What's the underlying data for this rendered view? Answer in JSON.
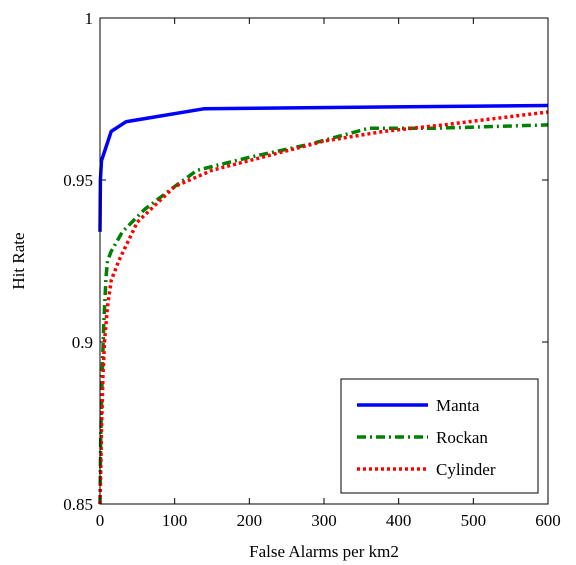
{
  "chart_data": {
    "type": "line",
    "xlabel": "False Alarms per km2",
    "ylabel": "Hit Rate",
    "xlim": [
      0,
      600
    ],
    "ylim": [
      0.85,
      1
    ],
    "xticks": [
      0,
      100,
      200,
      300,
      400,
      500,
      600
    ],
    "xtick_labels": [
      "0",
      "100",
      "200",
      "300",
      "400",
      "500",
      "600"
    ],
    "yticks": [
      0.85,
      0.9,
      0.95,
      1
    ],
    "ytick_labels": [
      "0.85",
      "0.9",
      "0.95",
      "1"
    ],
    "grid": false,
    "legend_position": "bottom-right",
    "series": [
      {
        "name": "Manta",
        "color": "#0000ff",
        "style": "solid",
        "x": [
          0,
          0.5,
          2,
          5,
          15,
          35,
          140,
          600
        ],
        "y": [
          0.934,
          0.95,
          0.956,
          0.958,
          0.965,
          0.968,
          0.972,
          0.973
        ]
      },
      {
        "name": "Rockan",
        "color": "#008000",
        "style": "dashdot",
        "x": [
          0,
          1,
          3,
          5,
          8,
          10,
          15,
          30,
          60,
          100,
          130,
          200,
          280,
          360,
          450,
          600
        ],
        "y": [
          0.85,
          0.87,
          0.89,
          0.905,
          0.92,
          0.925,
          0.928,
          0.934,
          0.941,
          0.948,
          0.953,
          0.957,
          0.961,
          0.966,
          0.966,
          0.967
        ]
      },
      {
        "name": "Cylinder",
        "color": "#ff0000",
        "style": "dotted",
        "x": [
          0,
          1,
          2,
          4,
          6,
          10,
          15,
          25,
          50,
          100,
          150,
          200,
          300,
          380,
          460,
          530,
          600
        ],
        "y": [
          0.85,
          0.86,
          0.873,
          0.89,
          0.9,
          0.911,
          0.919,
          0.925,
          0.937,
          0.948,
          0.953,
          0.956,
          0.962,
          0.965,
          0.967,
          0.969,
          0.971
        ]
      }
    ]
  }
}
